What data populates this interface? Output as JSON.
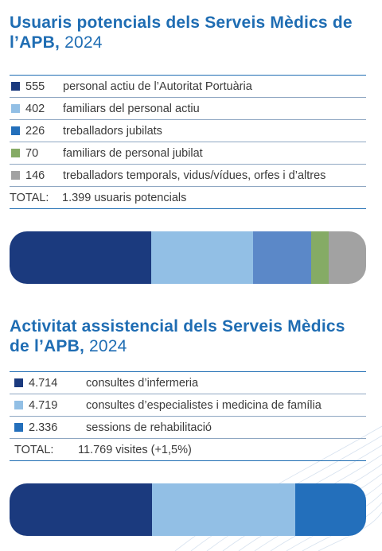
{
  "colors": {
    "title": "#1f6db3",
    "navy": "#1b3a7e",
    "light_blue": "#92bfe5",
    "mid_blue": "#5b88c8",
    "green": "#85ab65",
    "gray": "#a2a2a2",
    "blue": "#236fbb"
  },
  "section1": {
    "title_bold": "Usuaris potencials dels Serveis Mèdics de l’APB,",
    "title_year": "2024",
    "items": [
      {
        "value": "555",
        "label": "personal actiu de l’Autoritat Portuària",
        "color": "#1b3a7e"
      },
      {
        "value": "402",
        "label": "familiars del personal actiu",
        "color": "#92bfe5"
      },
      {
        "value": "226",
        "label": "treballadors jubilats",
        "color": "#236fbb"
      },
      {
        "value": "70",
        "label": "familiars de personal jubilat",
        "color": "#85ab65"
      },
      {
        "value": "146",
        "label": "treballadors temporals, vidus/vídues, orfes i d’altres",
        "color": "#a2a2a2"
      }
    ],
    "total_label": "TOTAL:",
    "total_value": "1.399 usuaris potencials"
  },
  "section2": {
    "title_bold": "Activitat assistencial dels Serveis Mèdics de l’APB,",
    "title_year": "2024",
    "items": [
      {
        "value": "4.714",
        "label": "consultes d’infermeria",
        "color": "#1b3a7e"
      },
      {
        "value": "4.719",
        "label": "consultes d’especialistes i medicina de família",
        "color": "#92bfe5"
      },
      {
        "value": "2.336",
        "label": "sessions de rehabilitació",
        "color": "#236fbb"
      }
    ],
    "total_label": "TOTAL:",
    "total_value": "11.769 visites (+1,5%)"
  },
  "bar1": {
    "segments": [
      {
        "value": 555,
        "color": "#1b3a7e"
      },
      {
        "value": 402,
        "color": "#92bfe5"
      },
      {
        "value": 226,
        "color": "#5b88c8"
      },
      {
        "value": 70,
        "color": "#85ab65"
      },
      {
        "value": 146,
        "color": "#a2a2a2"
      }
    ]
  },
  "bar2": {
    "segments": [
      {
        "value": 4714,
        "color": "#1b3a7e"
      },
      {
        "value": 4719,
        "color": "#92bfe5"
      },
      {
        "value": 2336,
        "color": "#236fbb"
      }
    ]
  }
}
